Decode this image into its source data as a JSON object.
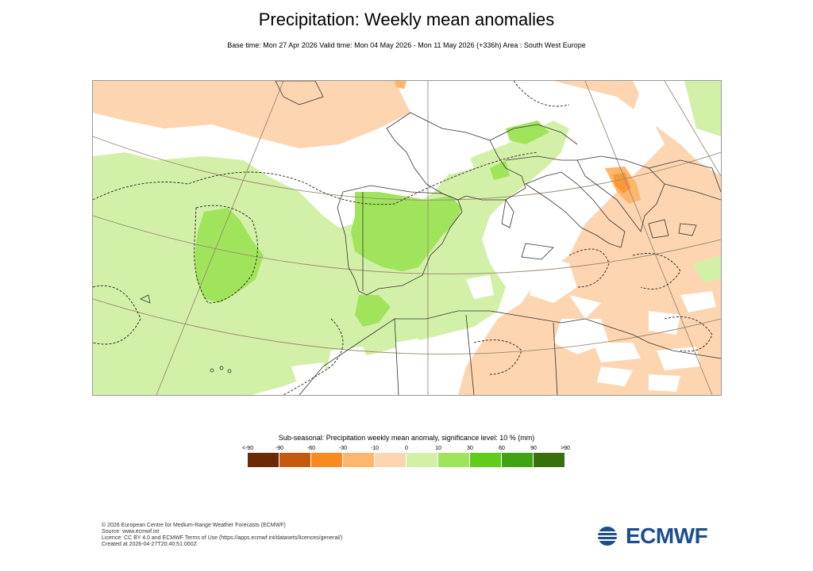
{
  "title": "Precipitation: Weekly mean anomalies",
  "subtitle": "Base time: Mon 27 Apr 2026 Valid time: Mon 04 May 2026 - Mon 11 May 2026 (+336h) Area : South West Europe",
  "legend": {
    "title": "Sub-seasonal: Precipitation weekly mean anomaly, significance level: 10 % (mm)",
    "ticks": [
      "<-90",
      "-90",
      "-60",
      "-30",
      "-10",
      "0",
      "10",
      "30",
      "60",
      "90",
      ">90"
    ],
    "colors": [
      "#6b2a06",
      "#c55a0f",
      "#fb8a1f",
      "#fdb66c",
      "#fdd5b0",
      "#d3f0a8",
      "#a0e45c",
      "#5fcd1a",
      "#3fa312",
      "#38700c"
    ]
  },
  "map": {
    "region": "South West Europe",
    "colors": {
      "land_outline": "#333333",
      "graticule": "#9a8a72",
      "white": "#ffffff"
    }
  },
  "footer": {
    "copyright": "© 2026 European Centre for Medium-Range Weather Forecasts (ECMWF)",
    "source": "Source: www.ecmwf.int",
    "licence": "Licence: CC BY 4.0 and ECMWF Terms of Use (https://apps.ecmwf.int/datasets/licences/general/)",
    "created": "Created at 2026-04-27T20:40:51.000Z"
  },
  "logo": {
    "text": "ECMWF",
    "color": "#1b4e8f",
    "icon": "ecmwf-logo-icon"
  }
}
